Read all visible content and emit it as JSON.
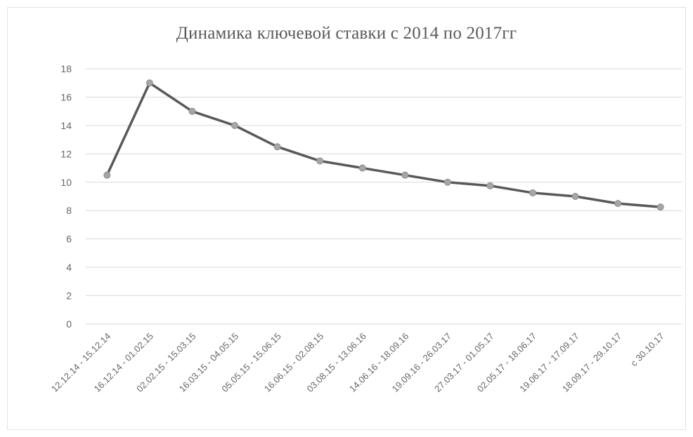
{
  "chart_data": {
    "type": "line",
    "title": "Динамика ключевой ставки с 2014 по 2017гг",
    "xlabel": "",
    "ylabel": "",
    "categories": [
      "12.12.14 - 15.12.14",
      "16.12.14 - 01.02.15",
      "02.02.15 - 15.03.15",
      "16.03.15 - 04.05.15",
      "05.05.15 - 15.06.15",
      "16.06.15 - 02.08.15",
      "03.08.15 - 13.06.16",
      "14.06.16 - 18.09.16",
      "19.09.16 - 26.03.17",
      "27.03.17 - 01.05.17",
      "02.05.17 - 18.06.17",
      "19.06.17 - 17.09.17",
      "18.09.17 - 29.10.17",
      "с 30.10.17"
    ],
    "series": [
      {
        "values": [
          10.5,
          17,
          15,
          14,
          12.5,
          11.5,
          11,
          10.5,
          10,
          9.75,
          9.25,
          9,
          8.5,
          8.25
        ]
      }
    ],
    "ylim": [
      0,
      18
    ],
    "yticks": [
      0,
      2,
      4,
      6,
      8,
      10,
      12,
      14,
      16,
      18
    ],
    "grid": true,
    "legend": "none",
    "colors": {
      "line": "#595959",
      "marker": "#a6a6a6",
      "grid": "#d9d9d9",
      "text": "#666666"
    }
  }
}
